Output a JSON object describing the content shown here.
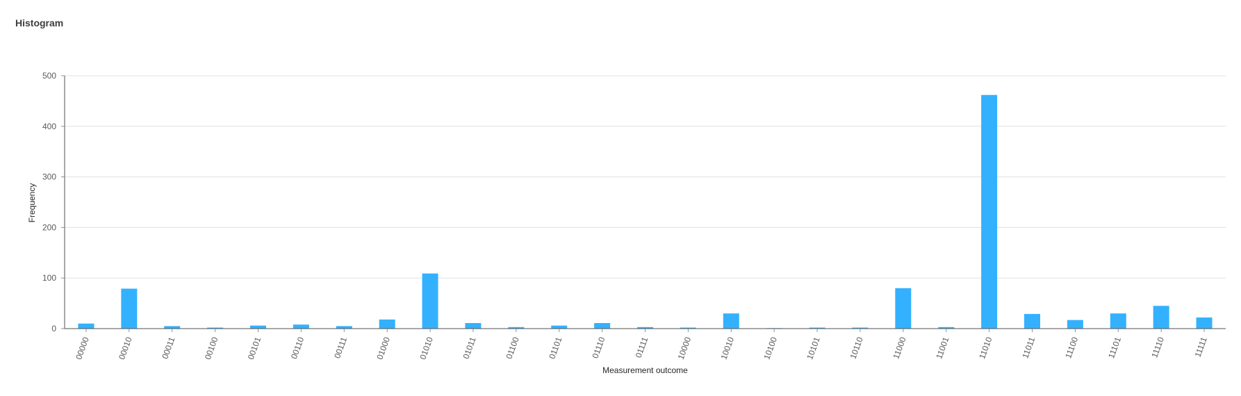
{
  "chart_data": {
    "type": "bar",
    "title": "Histogram",
    "xlabel": "Measurement outcome",
    "ylabel": "Frequency",
    "ylim": [
      0,
      500
    ],
    "yticks": [
      0,
      100,
      200,
      300,
      400,
      500
    ],
    "grid": true,
    "bar_color": "#33b1ff",
    "categories": [
      "00000",
      "00010",
      "00011",
      "00100",
      "00101",
      "00110",
      "00111",
      "01000",
      "01010",
      "01011",
      "01100",
      "01101",
      "01110",
      "01111",
      "10000",
      "10010",
      "10100",
      "10101",
      "10110",
      "11000",
      "11001",
      "11010",
      "11011",
      "11100",
      "11101",
      "11110",
      "11111"
    ],
    "values": [
      10,
      79,
      5,
      2,
      6,
      8,
      5,
      18,
      109,
      11,
      3,
      6,
      11,
      3,
      2,
      30,
      1,
      2,
      2,
      80,
      3,
      462,
      29,
      17,
      30,
      45,
      22
    ]
  }
}
